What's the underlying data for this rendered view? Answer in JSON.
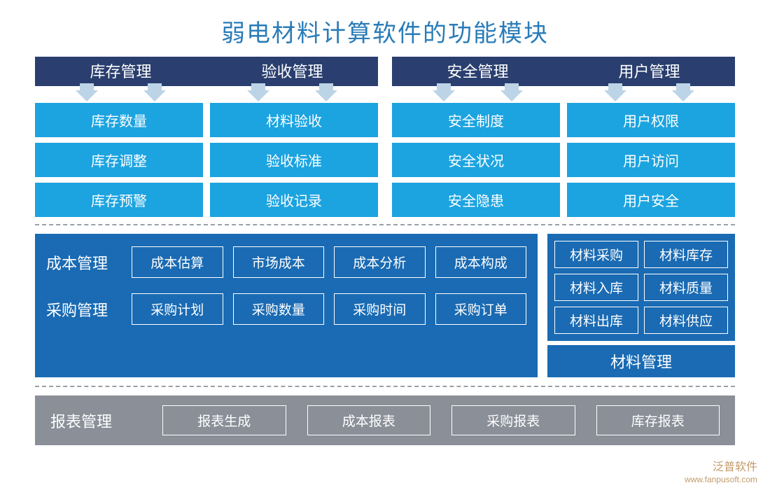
{
  "title": "弱电材料计算软件的功能模块",
  "colors": {
    "title_text": "#2a7cb8",
    "header_bg": "#2a3f6f",
    "arrow": "#bcd4e6",
    "box_bg": "#1ca4e0",
    "panel_bg": "#1a6bb3",
    "bottom_bg": "#8a8f98",
    "border": "#ffffff",
    "dash": "#9aa0a8",
    "text_light": "#ffffff"
  },
  "typography": {
    "title_fontsize": 34,
    "header_fontsize": 22,
    "box_fontsize": 20,
    "panel_label_fontsize": 22,
    "cell_fontsize": 19
  },
  "top": {
    "headers": [
      [
        "库存管理",
        "验收管理"
      ],
      [
        "安全管理",
        "用户管理"
      ]
    ],
    "columns": [
      [
        "库存数量",
        "库存调整",
        "库存预警"
      ],
      [
        "材料验收",
        "验收标准",
        "验收记录"
      ],
      [
        "安全制度",
        "安全状况",
        "安全隐患"
      ],
      [
        "用户权限",
        "用户访问",
        "用户安全"
      ]
    ]
  },
  "mid": {
    "rows": [
      {
        "label": "成本管理",
        "cells": [
          "成本估算",
          "市场成本",
          "成本分析",
          "成本构成"
        ]
      },
      {
        "label": "采购管理",
        "cells": [
          "采购计划",
          "采购数量",
          "采购时间",
          "采购订单"
        ]
      }
    ],
    "side": {
      "title": "材料管理",
      "cells": [
        "材料采购",
        "材料库存",
        "材料入库",
        "材料质量",
        "材料出库",
        "材料供应"
      ]
    }
  },
  "bottom": {
    "label": "报表管理",
    "cells": [
      "报表生成",
      "成本报表",
      "采购报表",
      "库存报表"
    ]
  },
  "watermark": {
    "brand": "泛普软件",
    "url": "www.fanpusoft.com"
  }
}
